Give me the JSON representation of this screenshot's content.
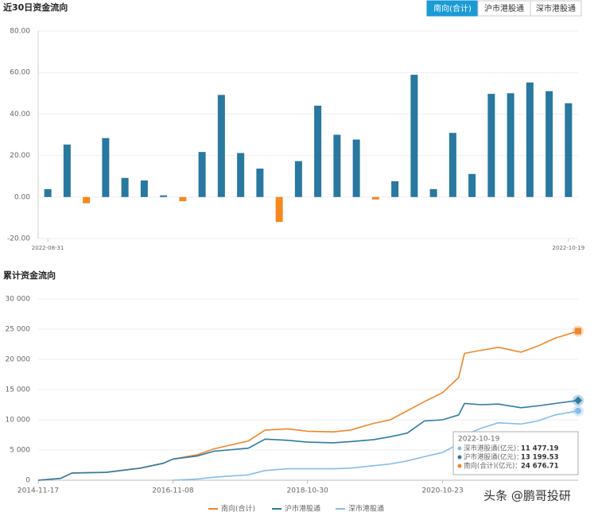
{
  "tabs": [
    "南向(合计)",
    "沪市港股通",
    "深市港股通"
  ],
  "active_tab": 0,
  "watermark": "头条 @鹏哥投研",
  "chart_data": [
    {
      "type": "bar",
      "title": "近30日资金流向",
      "categories": [
        "2022-08-31",
        null,
        null,
        null,
        null,
        null,
        null,
        null,
        null,
        null,
        null,
        null,
        null,
        null,
        null,
        null,
        null,
        null,
        null,
        null,
        null,
        null,
        null,
        null,
        null,
        null,
        null,
        "2022-10-19"
      ],
      "values": [
        3.8,
        25.3,
        -3,
        28.4,
        9.2,
        8,
        0.8,
        -2,
        21.7,
        49.2,
        21.2,
        13.7,
        -12,
        17.3,
        44,
        30,
        27.7,
        -1.2,
        7.6,
        58.9,
        3.8,
        30.9,
        11.1,
        49.7,
        50,
        55.2,
        51,
        45.2
      ],
      "positive_color": "#2878a0",
      "negative_color": "#f5891f",
      "ylim": [
        -20,
        80
      ],
      "yticks": [
        {
          "value": -20,
          "label": "-20.00"
        },
        {
          "value": 0,
          "label": "0.00"
        },
        {
          "value": 20,
          "label": "20.00"
        },
        {
          "value": 40,
          "label": "40.00"
        },
        {
          "value": 60,
          "label": "60.00"
        },
        {
          "value": 80,
          "label": "80.00"
        }
      ],
      "grid": true
    },
    {
      "type": "line",
      "title": "累计资金流向",
      "x": [
        "2014-11-17",
        "2015-03-17",
        "2015-05-17",
        "2015-11-17",
        "2016-05-17",
        "2016-09-17",
        "2016-11-08",
        "2017-03-17",
        "2017-06-17",
        "2017-12-17",
        "2018-03-17",
        "2018-07-17",
        "2018-10-30",
        "2019-03-17",
        "2019-06-17",
        "2019-10-17",
        "2020-01-17",
        "2020-04-17",
        "2020-07-17",
        "2020-10-23",
        "2021-01-17",
        "2021-02-17",
        "2021-05-17",
        "2021-08-17",
        "2021-12-17",
        "2022-03-17",
        "2022-06-17",
        "2022-10-19"
      ],
      "series": [
        {
          "name": "南向(合计)",
          "color": "#f0862a",
          "marker": "square",
          "values": [
            0,
            300,
            1200,
            1300,
            2000,
            2800,
            3500,
            4200,
            5200,
            6500,
            8300,
            8500,
            8100,
            8000,
            8300,
            9400,
            10000,
            11500,
            13000,
            14500,
            17000,
            21000,
            21500,
            22000,
            21200,
            22200,
            23500,
            24676.71
          ]
        },
        {
          "name": "沪市港股通",
          "color": "#2e7ba3",
          "marker": "diamond",
          "values": [
            0,
            300,
            1200,
            1300,
            2000,
            2800,
            3500,
            4000,
            4800,
            5300,
            6800,
            6600,
            6300,
            6200,
            6400,
            6700,
            7200,
            7800,
            9800,
            10000,
            10800,
            12700,
            12500,
            12600,
            12000,
            12300,
            12700,
            13199.53
          ]
        },
        {
          "name": "深市港股通",
          "color": "#86bde8",
          "marker": "circle",
          "values": [
            null,
            null,
            null,
            null,
            null,
            null,
            0,
            200,
            500,
            900,
            1600,
            1900,
            1900,
            1900,
            2000,
            2400,
            2700,
            3200,
            3900,
            4600,
            6000,
            7500,
            8600,
            9500,
            9300,
            9800,
            10800,
            11477.19
          ]
        }
      ],
      "xlim": [
        "2014-11-17",
        "2022-10-19"
      ],
      "xticks": [
        "2014-11-17",
        "2016-11-08",
        "2018-10-30",
        "2020-10-23"
      ],
      "ylim": [
        0,
        30000
      ],
      "yticks": [
        0,
        {
          "value": 5000,
          "label": "5 000"
        },
        {
          "value": 10000,
          "label": "10 000"
        },
        {
          "value": 15000,
          "label": "15 000"
        },
        {
          "value": 20000,
          "label": "20 000"
        },
        {
          "value": 25000,
          "label": "25 000"
        },
        {
          "value": 30000,
          "label": "30 000"
        }
      ],
      "grid": true,
      "tooltip": {
        "title": "2022-10-19",
        "items": [
          {
            "name": "深市港股通(亿元)：",
            "value_label": "11 477.19",
            "color": "#86bde8"
          },
          {
            "name": "沪市港股通(亿元)：",
            "value_label": "13 199.53",
            "color": "#2e7ba3"
          },
          {
            "name": "南向(合计)(亿元)：",
            "value_label": "24 676.71",
            "color": "#f0862a"
          }
        ]
      }
    }
  ]
}
